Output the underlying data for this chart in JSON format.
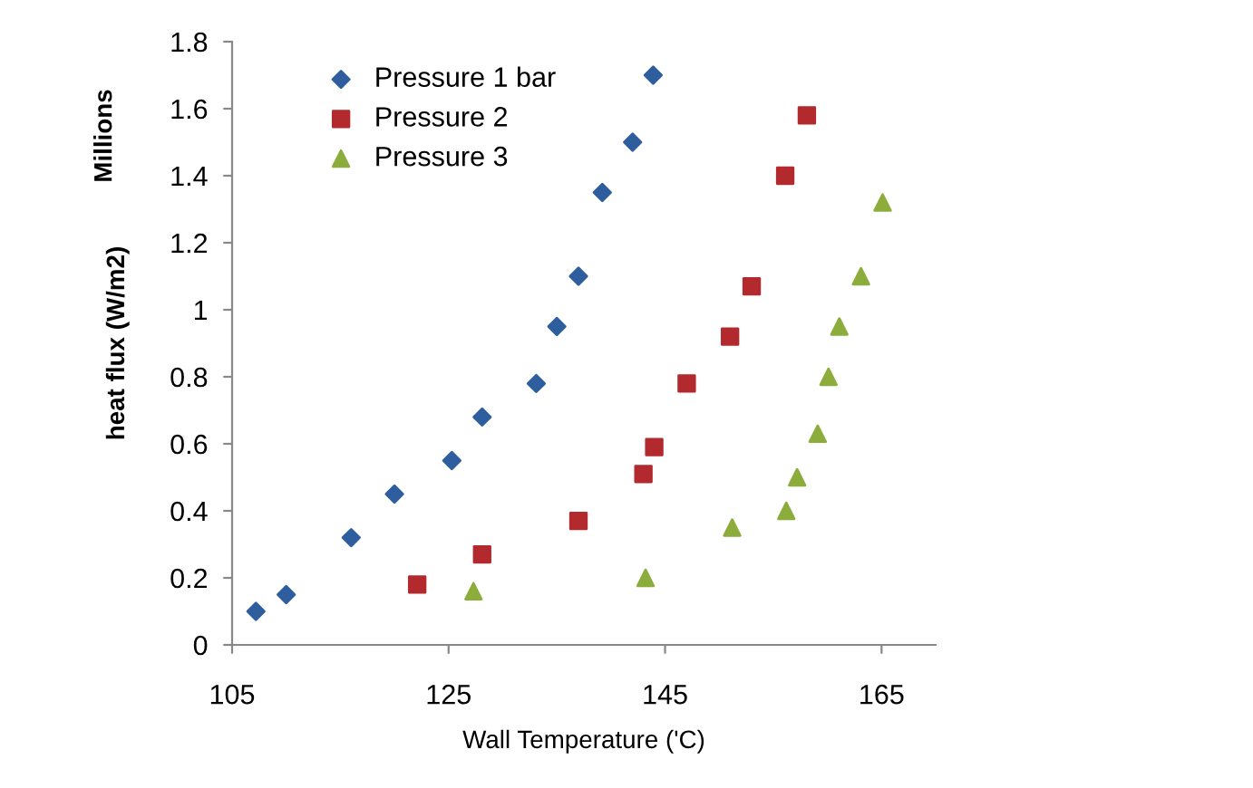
{
  "chart_data": {
    "type": "scatter",
    "xlabel": "Wall Temperature ('C)",
    "ylabel": "heat flux (W/m2)",
    "annotations": [
      "Millions"
    ],
    "xlim": [
      105,
      170
    ],
    "xticks": [
      105,
      125,
      145,
      165
    ],
    "ylim": [
      0,
      1.8
    ],
    "yticks": [
      0,
      0.2,
      0.4,
      0.6,
      0.8,
      1,
      1.2,
      1.4,
      1.6,
      1.8
    ],
    "grid": false,
    "legend": "top left",
    "series": [
      {
        "name": "Pressure 1 bar",
        "color": "#2e5e9e",
        "marker": "diamond",
        "x": [
          107.2,
          110,
          116,
          120,
          125.3,
          128.1,
          133.1,
          135,
          137,
          139.2,
          142,
          143.9
        ],
        "values": [
          0.1,
          0.15,
          0.32,
          0.45,
          0.55,
          0.68,
          0.78,
          0.95,
          1.1,
          1.35,
          1.5,
          1.7
        ]
      },
      {
        "name": "Pressure 2",
        "color": "#b22a2e",
        "marker": "square",
        "x": [
          122.1,
          128.1,
          137,
          143,
          144,
          147,
          151,
          153,
          156.1,
          158.1
        ],
        "values": [
          0.18,
          0.27,
          0.37,
          0.51,
          0.59,
          0.78,
          0.92,
          1.07,
          1.4,
          1.58
        ]
      },
      {
        "name": "Pressure 3",
        "color": "#8cad3c",
        "marker": "triangle",
        "x": [
          127.3,
          143.2,
          151.2,
          156.2,
          157.2,
          159.1,
          160.1,
          161.1,
          163.1,
          165.1
        ],
        "values": [
          0.16,
          0.2,
          0.35,
          0.4,
          0.5,
          0.63,
          0.8,
          0.95,
          1.1,
          1.32
        ]
      }
    ]
  }
}
